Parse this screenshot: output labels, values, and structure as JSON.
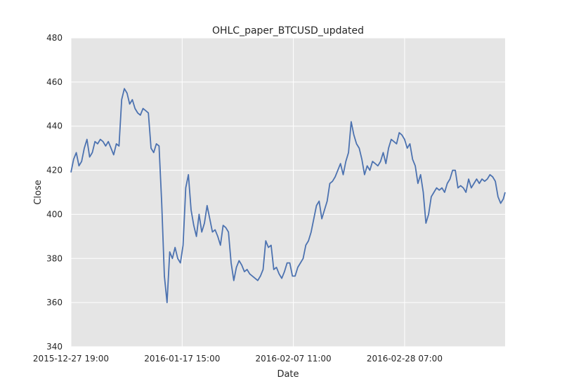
{
  "chart_data": {
    "type": "line",
    "title": "OHLC_paper_BTCUSD_updated",
    "xlabel": "Date",
    "ylabel": "Close",
    "ylim": [
      340,
      480
    ],
    "yticks": [
      340,
      360,
      380,
      400,
      420,
      440,
      460,
      480
    ],
    "xlim": [
      "2015-12-27 19:00",
      "2016-03-18 03:00"
    ],
    "xticks": [
      "2015-12-27 19:00",
      "2016-01-17 15:00",
      "2016-02-07 11:00",
      "2016-02-28 07:00"
    ],
    "grid": true,
    "colors": {
      "line": "#4c72b0",
      "plot_bg": "#e5e5e5",
      "grid": "#ffffff"
    },
    "series": [
      {
        "x": [
          "2015-12-27 19:00",
          "2015-12-28 07:00",
          "2015-12-28 19:00",
          "2015-12-29 07:00",
          "2015-12-29 19:00",
          "2015-12-30 07:00",
          "2015-12-30 19:00",
          "2015-12-31 07:00",
          "2015-12-31 19:00",
          "2016-01-01 07:00",
          "2016-01-01 19:00",
          "2016-01-02 07:00",
          "2016-01-02 19:00",
          "2016-01-03 07:00",
          "2016-01-03 19:00",
          "2016-01-04 07:00",
          "2016-01-04 19:00",
          "2016-01-05 07:00",
          "2016-01-05 19:00",
          "2016-01-06 07:00",
          "2016-01-06 19:00",
          "2016-01-07 07:00",
          "2016-01-07 19:00",
          "2016-01-08 07:00",
          "2016-01-08 19:00",
          "2016-01-09 07:00",
          "2016-01-09 19:00",
          "2016-01-10 07:00",
          "2016-01-10 19:00",
          "2016-01-11 07:00",
          "2016-01-11 19:00",
          "2016-01-12 07:00",
          "2016-01-12 19:00",
          "2016-01-13 07:00",
          "2016-01-13 19:00",
          "2016-01-14 07:00",
          "2016-01-14 19:00",
          "2016-01-15 07:00",
          "2016-01-15 19:00",
          "2016-01-16 07:00",
          "2016-01-16 19:00",
          "2016-01-17 07:00",
          "2016-01-17 19:00",
          "2016-01-18 07:00",
          "2016-01-18 19:00",
          "2016-01-19 07:00",
          "2016-01-19 19:00",
          "2016-01-20 07:00",
          "2016-01-20 19:00",
          "2016-01-21 07:00",
          "2016-01-21 19:00",
          "2016-01-22 07:00",
          "2016-01-22 19:00",
          "2016-01-23 07:00",
          "2016-01-23 19:00",
          "2016-01-24 07:00",
          "2016-01-24 19:00",
          "2016-01-25 07:00",
          "2016-01-25 19:00",
          "2016-01-26 07:00",
          "2016-01-26 19:00",
          "2016-01-27 07:00",
          "2016-01-27 19:00",
          "2016-01-28 07:00",
          "2016-01-28 19:00",
          "2016-01-29 07:00",
          "2016-01-29 19:00",
          "2016-01-30 07:00",
          "2016-01-30 19:00",
          "2016-01-31 07:00",
          "2016-01-31 19:00",
          "2016-02-01 07:00",
          "2016-02-01 19:00",
          "2016-02-02 07:00",
          "2016-02-02 19:00",
          "2016-02-03 07:00",
          "2016-02-03 19:00",
          "2016-02-04 07:00",
          "2016-02-04 19:00",
          "2016-02-05 07:00",
          "2016-02-05 19:00",
          "2016-02-06 07:00",
          "2016-02-06 19:00",
          "2016-02-07 07:00",
          "2016-02-07 19:00",
          "2016-02-08 07:00",
          "2016-02-08 19:00",
          "2016-02-09 07:00",
          "2016-02-09 19:00",
          "2016-02-10 07:00",
          "2016-02-10 19:00",
          "2016-02-11 07:00",
          "2016-02-11 19:00",
          "2016-02-12 07:00",
          "2016-02-12 19:00",
          "2016-02-13 07:00",
          "2016-02-13 19:00",
          "2016-02-14 07:00",
          "2016-02-14 19:00",
          "2016-02-15 07:00",
          "2016-02-15 19:00",
          "2016-02-16 07:00",
          "2016-02-16 19:00",
          "2016-02-17 07:00",
          "2016-02-17 19:00",
          "2016-02-18 07:00",
          "2016-02-18 19:00",
          "2016-02-19 07:00",
          "2016-02-19 19:00",
          "2016-02-20 07:00",
          "2016-02-20 19:00",
          "2016-02-21 07:00",
          "2016-02-21 19:00",
          "2016-02-22 07:00",
          "2016-02-22 19:00",
          "2016-02-23 07:00",
          "2016-02-23 19:00",
          "2016-02-24 07:00",
          "2016-02-24 19:00",
          "2016-02-25 07:00",
          "2016-02-25 19:00",
          "2016-02-26 07:00",
          "2016-02-26 19:00",
          "2016-02-27 07:00",
          "2016-02-27 19:00",
          "2016-02-28 07:00",
          "2016-02-28 19:00",
          "2016-02-29 07:00",
          "2016-02-29 19:00",
          "2016-03-01 07:00",
          "2016-03-01 19:00",
          "2016-03-02 07:00",
          "2016-03-02 19:00",
          "2016-03-03 07:00",
          "2016-03-03 19:00",
          "2016-03-04 07:00",
          "2016-03-04 19:00",
          "2016-03-05 07:00",
          "2016-03-05 19:00",
          "2016-03-06 07:00",
          "2016-03-06 19:00",
          "2016-03-07 07:00",
          "2016-03-07 19:00",
          "2016-03-08 07:00",
          "2016-03-08 19:00",
          "2016-03-09 07:00",
          "2016-03-09 19:00",
          "2016-03-10 07:00",
          "2016-03-10 19:00",
          "2016-03-11 07:00",
          "2016-03-11 19:00",
          "2016-03-12 07:00",
          "2016-03-12 19:00",
          "2016-03-13 07:00",
          "2016-03-13 19:00",
          "2016-03-14 07:00",
          "2016-03-14 19:00",
          "2016-03-15 07:00",
          "2016-03-15 19:00",
          "2016-03-16 07:00",
          "2016-03-16 19:00",
          "2016-03-17 07:00",
          "2016-03-17 19:00",
          "2016-03-18 03:00"
        ],
        "values": [
          419,
          425,
          428,
          422,
          424,
          430,
          434,
          426,
          428,
          433,
          432,
          434,
          433,
          431,
          433,
          430,
          427,
          432,
          431,
          452,
          457,
          455,
          450,
          452,
          448,
          446,
          445,
          448,
          447,
          446,
          430,
          428,
          432,
          431,
          405,
          372,
          360,
          383,
          380,
          385,
          380,
          378,
          386,
          412,
          418,
          402,
          395,
          390,
          400,
          392,
          396,
          404,
          398,
          392,
          393,
          390,
          386,
          395,
          394,
          392,
          378,
          370,
          376,
          379,
          377,
          374,
          375,
          373,
          372,
          371,
          370,
          372,
          375,
          388,
          385,
          386,
          375,
          376,
          373,
          371,
          374,
          378,
          378,
          372,
          372,
          376,
          378,
          380,
          386,
          388,
          392,
          398,
          404,
          406,
          398,
          402,
          406,
          414,
          415,
          417,
          420,
          423,
          418,
          424,
          428,
          442,
          436,
          432,
          430,
          425,
          418,
          422,
          420,
          424,
          423,
          422,
          424,
          428,
          423,
          430,
          434,
          433,
          432,
          437,
          436,
          434,
          430,
          432,
          425,
          422,
          414,
          418,
          410,
          396,
          400,
          408,
          410,
          412,
          411,
          412,
          410,
          414,
          416,
          420,
          420,
          412,
          413,
          412,
          410,
          416,
          412,
          414,
          416,
          414,
          416,
          415,
          416,
          418,
          417,
          415,
          408,
          405,
          407,
          410
        ]
      }
    ]
  }
}
